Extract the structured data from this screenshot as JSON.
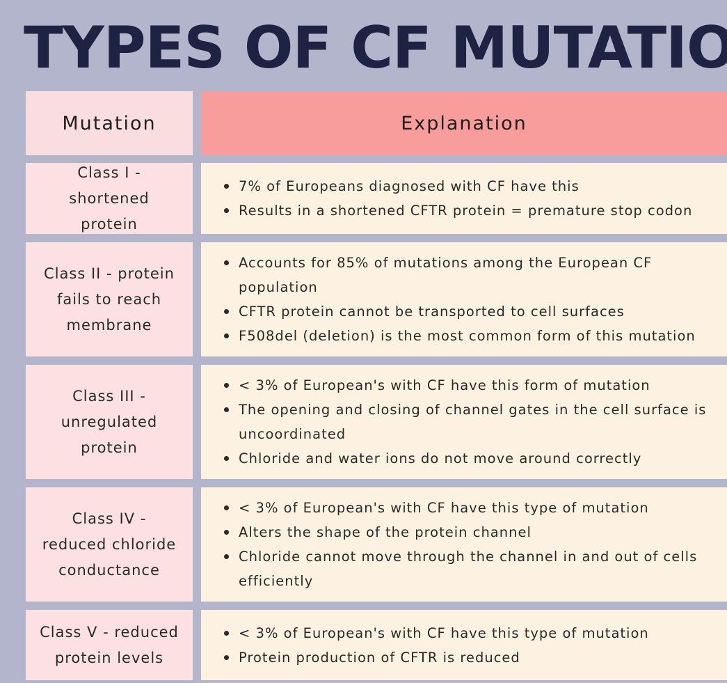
{
  "title": "TYPES OF CF MUTATIONS",
  "table": {
    "headers": {
      "mutation": "Mutation",
      "explanation": "Explanation"
    },
    "rows": [
      {
        "mutation": "Class I - shortened protein",
        "bullets": [
          "7% of Europeans diagnosed with CF have this",
          "Results in a shortened CFTR protein = premature stop codon"
        ]
      },
      {
        "mutation": "Class II - protein fails to reach membrane",
        "bullets": [
          "Accounts for 85% of mutations among the European CF population",
          "CFTR protein cannot be transported to cell surfaces",
          "F508del (deletion) is the most common form of this mutation"
        ]
      },
      {
        "mutation": "Class III - unregulated protein",
        "bullets": [
          "< 3% of European's with CF have this form of mutation",
          "The opening and closing of channel gates in the cell surface is uncoordinated",
          "Chloride and water ions do not move around correctly"
        ]
      },
      {
        "mutation": "Class IV - reduced chloride conductance",
        "bullets": [
          "< 3% of European's with CF have this type of mutation",
          "Alters the shape of the protein channel",
          "Chloride cannot move through the channel in and out of cells efficiently"
        ]
      },
      {
        "mutation": "Class V - reduced protein levels",
        "bullets": [
          "< 3% of European's with CF have this type of mutation",
          "Protein production of CFTR is reduced"
        ]
      }
    ]
  },
  "colors": {
    "background": "#b3b5cc",
    "title": "#1f2343",
    "header_left": "#fadedf",
    "header_right": "#f99c9c",
    "mutation_cell": "#fce0e2",
    "explanation_cell": "#fdf2e2"
  }
}
